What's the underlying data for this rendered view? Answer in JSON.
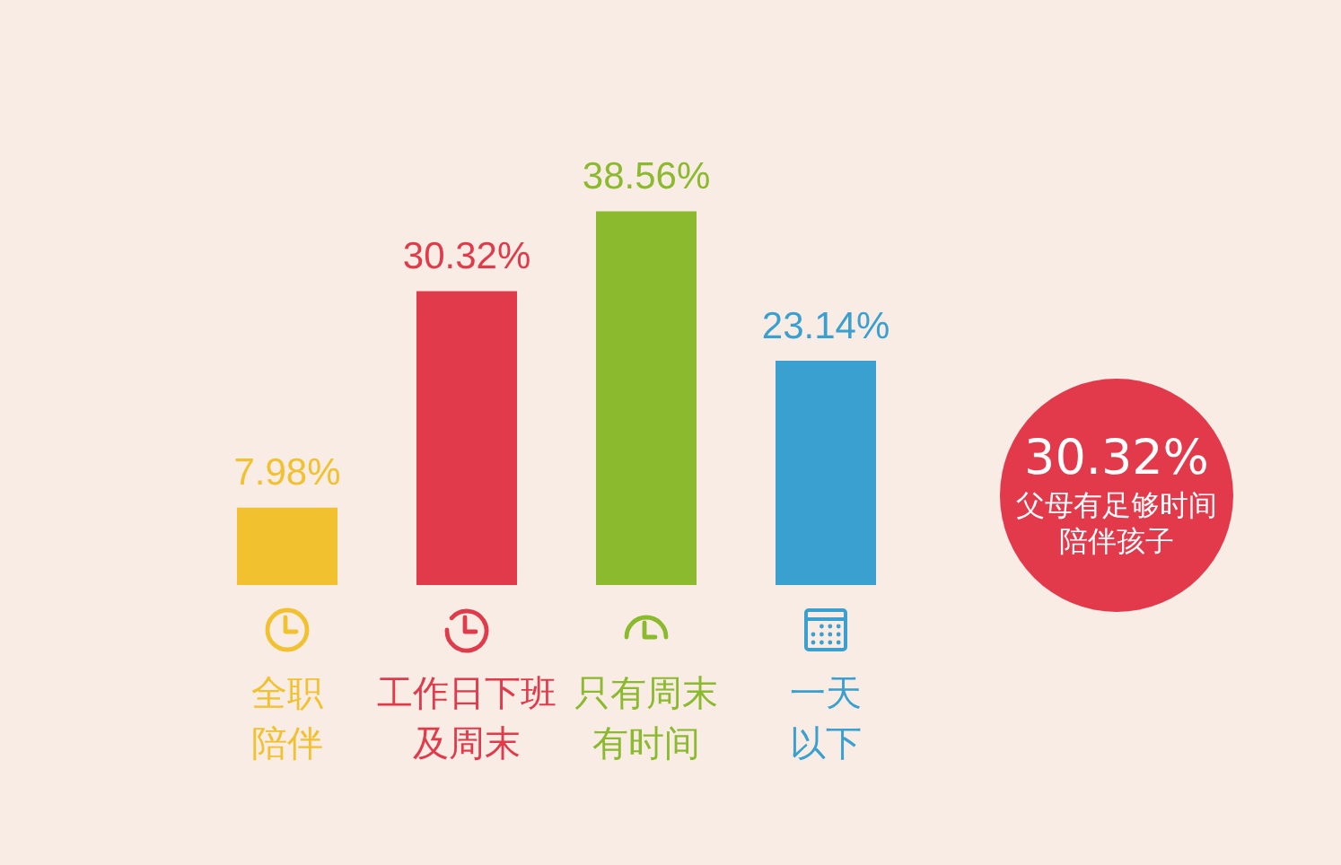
{
  "chart_data": {
    "type": "bar",
    "categories": [
      "全职陪伴",
      "工作日下班及周末",
      "只有周末有时间",
      "一天以下"
    ],
    "values": [
      7.98,
      30.32,
      38.56,
      23.14
    ],
    "colors": [
      "#f2c12f",
      "#e03a4b",
      "#8cba2e",
      "#3aa0cf"
    ],
    "value_labels": [
      "7.98%",
      "30.32%",
      "38.56%",
      "23.14%"
    ],
    "annotations": [
      "30.32%",
      "父母有足够时间陪伴孩子"
    ]
  }
}
